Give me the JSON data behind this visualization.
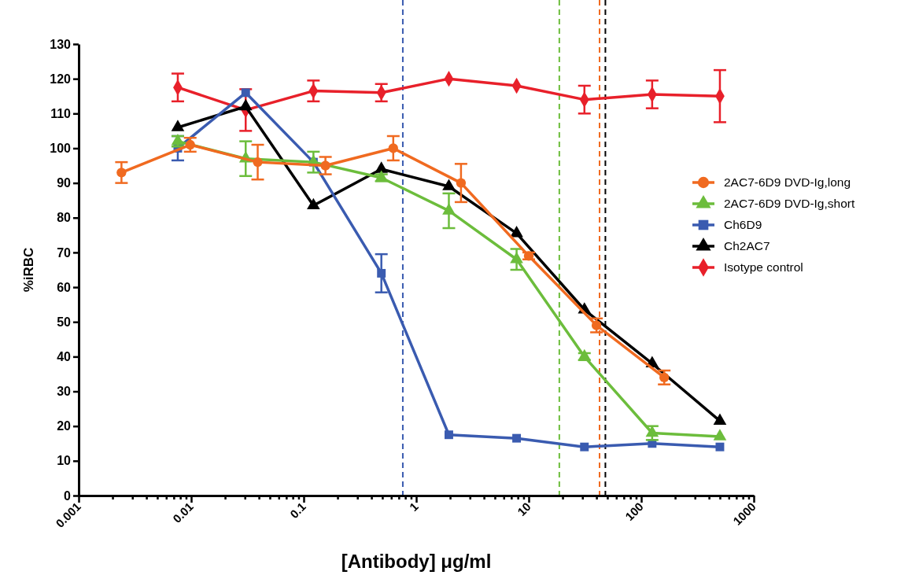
{
  "chart_data": {
    "type": "line",
    "xlabel": "[Antibody] μg/ml",
    "ylabel": "%iRBC",
    "log": "x",
    "xlim": [
      0.001,
      1000
    ],
    "ylim": [
      0,
      130
    ],
    "xticks": [
      0.001,
      {
        "value": 0.002,
        "label": null
      },
      {
        "value": 0.003,
        "label": null
      },
      {
        "value": 0.004,
        "label": null
      },
      {
        "value": 0.005,
        "label": null
      },
      {
        "value": 0.006,
        "label": null
      },
      {
        "value": 0.007,
        "label": null
      },
      {
        "value": 0.008,
        "label": null
      },
      {
        "value": 0.009,
        "label": null
      },
      0.01,
      {
        "value": 0.02,
        "label": null
      },
      {
        "value": 0.03,
        "label": null
      },
      {
        "value": 0.04,
        "label": null
      },
      {
        "value": 0.05,
        "label": null
      },
      {
        "value": 0.06,
        "label": null
      },
      {
        "value": 0.07,
        "label": null
      },
      {
        "value": 0.08,
        "label": null
      },
      {
        "value": 0.09,
        "label": null
      },
      0.1,
      {
        "value": 0.2,
        "label": null
      },
      {
        "value": 0.3,
        "label": null
      },
      {
        "value": 0.4,
        "label": null
      },
      {
        "value": 0.5,
        "label": null
      },
      {
        "value": 0.6,
        "label": null
      },
      {
        "value": 0.7,
        "label": null
      },
      {
        "value": 0.8,
        "label": null
      },
      {
        "value": 0.9,
        "label": null
      },
      1,
      {
        "value": 2,
        "label": null
      },
      {
        "value": 3,
        "label": null
      },
      {
        "value": 4,
        "label": null
      },
      {
        "value": 5,
        "label": null
      },
      {
        "value": 6,
        "label": null
      },
      {
        "value": 7,
        "label": null
      },
      {
        "value": 8,
        "label": null
      },
      {
        "value": 9,
        "label": null
      },
      10,
      {
        "value": 20,
        "label": null
      },
      {
        "value": 30,
        "label": null
      },
      {
        "value": 40,
        "label": null
      },
      {
        "value": 50,
        "label": null
      },
      {
        "value": 60,
        "label": null
      },
      {
        "value": 70,
        "label": null
      },
      {
        "value": 80,
        "label": null
      },
      {
        "value": 90,
        "label": null
      },
      100,
      {
        "value": 200,
        "label": null
      },
      {
        "value": 300,
        "label": null
      },
      {
        "value": 400,
        "label": null
      },
      {
        "value": 500,
        "label": null
      },
      {
        "value": 600,
        "label": null
      },
      {
        "value": 700,
        "label": null
      },
      {
        "value": 800,
        "label": null
      },
      {
        "value": 900,
        "label": null
      },
      1000
    ],
    "yticks": [
      0,
      10,
      20,
      30,
      40,
      50,
      60,
      70,
      80,
      90,
      100,
      110,
      120,
      130
    ],
    "legend": "right",
    "grid": false,
    "series": [
      {
        "name": "2AC7-6D9 DVD-Ig,long",
        "color": "#f06a20",
        "marker": "circle",
        "x": [
          0.0024,
          0.0098,
          0.039,
          0.156,
          0.625,
          2.5,
          10,
          40,
          160
        ],
        "values": [
          93,
          101,
          96,
          95,
          100,
          90,
          69,
          49,
          34
        ],
        "errors": [
          3,
          2,
          5,
          2.5,
          3.5,
          5.5,
          1,
          2,
          2
        ]
      },
      {
        "name": "2AC7-6D9 DVD-Ig,short",
        "color": "#6cbd3c",
        "marker": "triangle",
        "x": [
          0.0076,
          0.0305,
          0.122,
          0.49,
          1.95,
          7.8,
          31.25,
          125,
          500
        ],
        "values": [
          102,
          97,
          96,
          91.5,
          82,
          68,
          40,
          18,
          17
        ],
        "errors": [
          1.5,
          5,
          3,
          1,
          5,
          3,
          1,
          2,
          null
        ]
      },
      {
        "name": "Ch6D9",
        "color": "#3a5bb0",
        "marker": "square",
        "x": [
          0.0076,
          0.0305,
          0.122,
          0.49,
          1.95,
          7.8,
          31.25,
          125,
          500
        ],
        "values": [
          100,
          116,
          96,
          64,
          17.5,
          16.5,
          14,
          15,
          14
        ],
        "errors": [
          3.5,
          null,
          null,
          5.5,
          null,
          null,
          null,
          null,
          null
        ]
      },
      {
        "name": "Ch2AC7",
        "color": "#000000",
        "marker": "triangle",
        "x": [
          0.0076,
          0.0305,
          0.122,
          0.49,
          1.95,
          7.8,
          31.25,
          125,
          500
        ],
        "values": [
          106,
          112,
          83.5,
          94,
          89,
          75.5,
          53.5,
          38,
          21.5
        ]
      },
      {
        "name": "Isotype control",
        "color": "#e8202a",
        "marker": "diamond",
        "x": [
          0.0076,
          0.0305,
          0.122,
          0.49,
          1.95,
          7.8,
          31.25,
          125,
          500
        ],
        "values": [
          117.5,
          111,
          116.5,
          116,
          120,
          118,
          114,
          115.5,
          115
        ],
        "errors": [
          4,
          6,
          3,
          2.5,
          null,
          null,
          4,
          4,
          7.5
        ]
      }
    ],
    "ref_lines": [
      {
        "axis": "x",
        "value": 0.76,
        "color": "#3a5bb0",
        "line_style": "dashed"
      },
      {
        "axis": "x",
        "value": 18.7,
        "color": "#6cbd3c",
        "line_style": "dashed"
      },
      {
        "axis": "x",
        "value": 42.6,
        "color": "#f06a20",
        "line_style": "dashed"
      },
      {
        "axis": "x",
        "value": 48,
        "color": "#000000",
        "line_style": "dashed"
      }
    ]
  }
}
